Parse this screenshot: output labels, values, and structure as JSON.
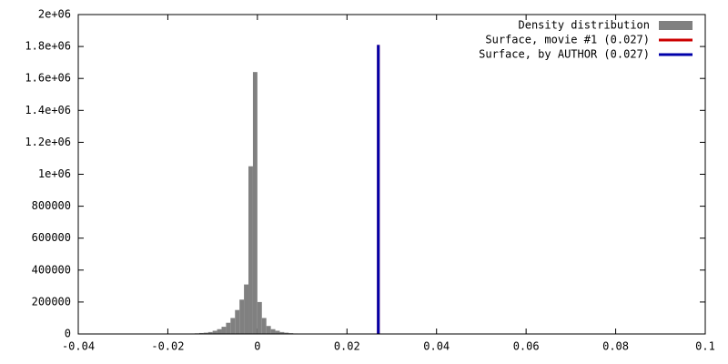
{
  "chart_data": {
    "type": "histogram",
    "name": "Density distribution",
    "color": "#808080",
    "bins": [
      -0.018,
      -0.017,
      -0.016,
      -0.015,
      -0.014,
      -0.013,
      -0.012,
      -0.011,
      -0.01,
      -0.009,
      -0.008,
      -0.007,
      -0.006,
      -0.005,
      -0.004,
      -0.003,
      -0.002,
      -0.001,
      0,
      0.001,
      0.002,
      0.003,
      0.004,
      0.005,
      0.006,
      0.007,
      0.008,
      0.009
    ],
    "counts": [
      1000,
      1500,
      2000,
      3000,
      4000,
      6000,
      8000,
      12000,
      20000,
      30000,
      45000,
      70000,
      100000,
      150000,
      215000,
      310000,
      1050000,
      1640000,
      200000,
      100000,
      50000,
      30000,
      20000,
      12000,
      8000,
      5000,
      3000
    ],
    "lines": [
      {
        "name": "Surface, movie #1 (0.027)",
        "color": "#cc0000",
        "x": 0.027,
        "top": 1810000
      },
      {
        "name": "Surface, by AUTHOR (0.027)",
        "color": "#0000aa",
        "x": 0.027,
        "top": 1810000
      }
    ],
    "xlim": [
      -0.04,
      0.1
    ],
    "xticks": [
      -0.04,
      -0.02,
      0,
      0.02,
      0.04,
      0.06,
      0.08,
      0.1
    ],
    "ylim": [
      0,
      2000000
    ],
    "yticks": [
      0,
      200000,
      400000,
      600000,
      800000,
      {
        "value": 1000000,
        "label": "1e+06"
      },
      {
        "value": 1200000,
        "label": "1.2e+06"
      },
      {
        "value": 1400000,
        "label": "1.4e+06"
      },
      {
        "value": 1600000,
        "label": "1.6e+06"
      },
      {
        "value": 1800000,
        "label": "1.8e+06"
      },
      {
        "value": 2000000,
        "label": "2e+06"
      }
    ],
    "legend": "top-right"
  }
}
